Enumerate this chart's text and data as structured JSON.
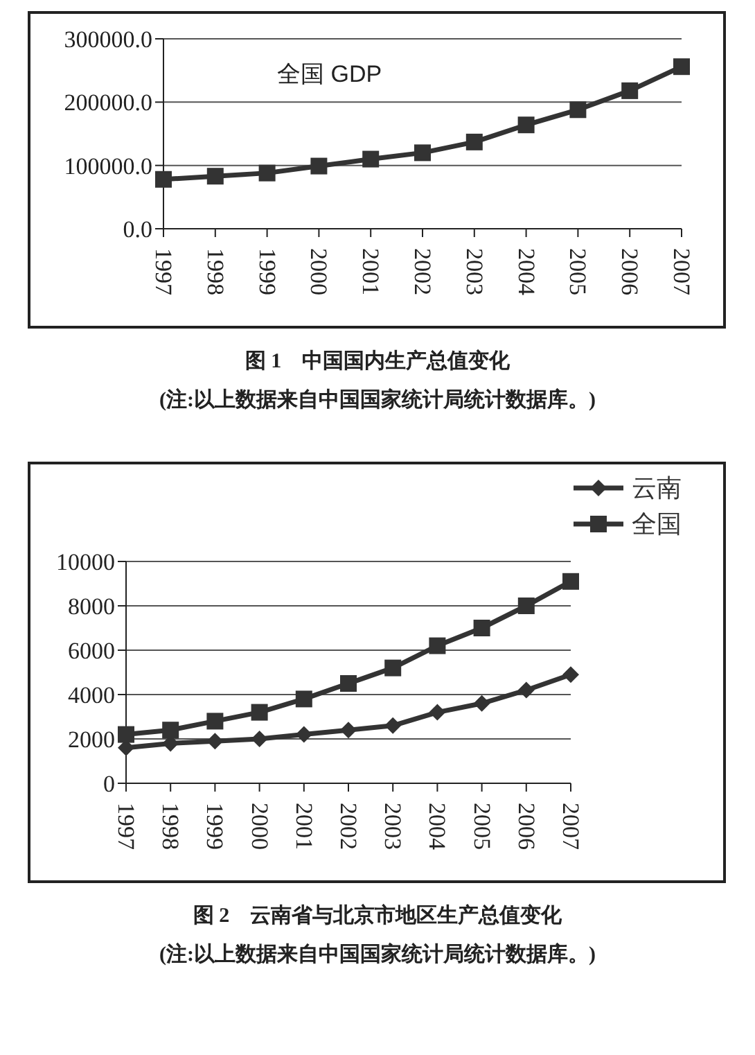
{
  "chart_data": [
    {
      "type": "line",
      "title": "全国 GDP",
      "categories": [
        "1997",
        "1998",
        "1999",
        "2000",
        "2001",
        "2002",
        "2003",
        "2004",
        "2005",
        "2006",
        "2007"
      ],
      "series": [
        {
          "color": "#333333",
          "values": [
            78000,
            83000,
            88000,
            99000,
            110000,
            120000,
            137000,
            164000,
            188000,
            218000,
            256000
          ]
        }
      ],
      "ylim": [
        0,
        300000
      ],
      "yticks": [
        {
          "value": 0,
          "label": "0.0"
        },
        {
          "value": 100000,
          "label": "100000.0"
        },
        {
          "value": 200000,
          "label": "200000.0"
        },
        {
          "value": 300000,
          "label": "300000.0"
        }
      ],
      "grid": "y",
      "marker": "square",
      "line_style": "solid",
      "legend": false,
      "annotations": [
        "图 1　中国国内生产总值变化",
        "(注:以上数据来自中国国家统计局统计数据库。)"
      ]
    },
    {
      "type": "line",
      "categories": [
        "1997",
        "1998",
        "1999",
        "2000",
        "2001",
        "2002",
        "2003",
        "2004",
        "2005",
        "2006",
        "2007"
      ],
      "series": [
        {
          "name": "云南",
          "color": "#333333",
          "marker": "diamond",
          "values": [
            1600,
            1800,
            1900,
            2000,
            2200,
            2400,
            2600,
            3200,
            3600,
            4200,
            4900
          ]
        },
        {
          "name": "全国",
          "color": "#333333",
          "marker": "square",
          "values": [
            2200,
            2400,
            2800,
            3200,
            3800,
            4500,
            5200,
            6200,
            7000,
            8000,
            9100
          ]
        }
      ],
      "ylim": [
        0,
        10000
      ],
      "yticks": [
        0,
        2000,
        4000,
        6000,
        8000,
        10000
      ],
      "grid": "y",
      "line_style": "solid",
      "legend": "top right",
      "annotations": [
        "图 2　云南省与北京市地区生产总值变化",
        "(注:以上数据来自中国国家统计局统计数据库。)"
      ]
    }
  ]
}
